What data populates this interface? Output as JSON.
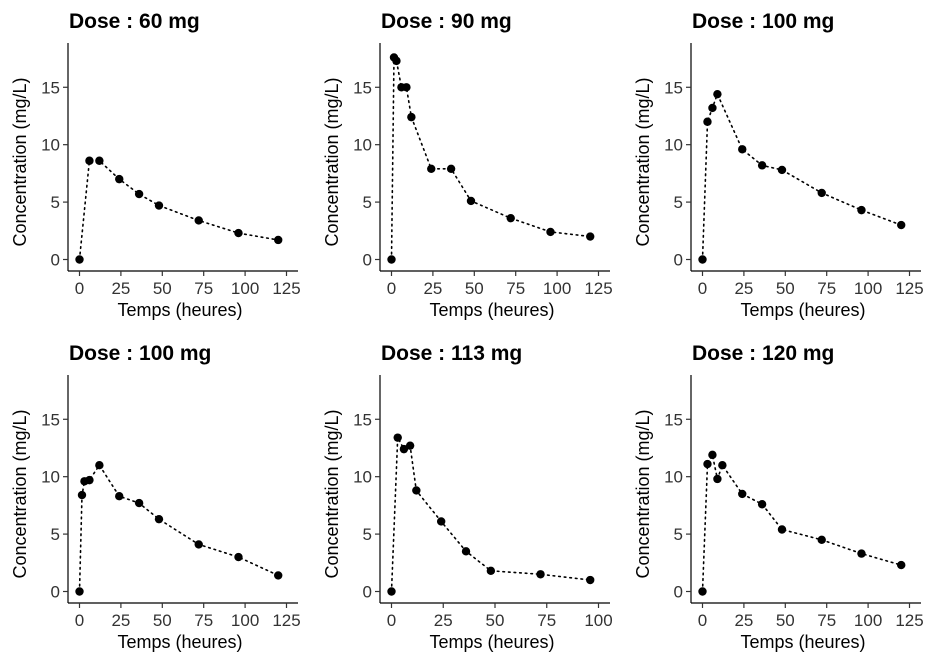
{
  "chart_data": [
    {
      "type": "line",
      "title": "Dose : 60 mg",
      "xlabel": "Temps (heures)",
      "ylabel": "Concentration (mg/L)",
      "xlim": [
        0,
        125
      ],
      "ylim": [
        0,
        18
      ],
      "xticks": [
        0,
        25,
        50,
        75,
        100,
        125
      ],
      "xtick_labels": [
        "0",
        "25",
        "50",
        "75",
        "100",
        "125"
      ],
      "yticks": [
        0,
        5,
        10,
        15
      ],
      "ytick_labels": [
        "0",
        "5",
        "10",
        "15"
      ],
      "x": [
        0,
        6,
        12,
        24,
        36,
        48,
        72,
        96,
        120
      ],
      "y": [
        0,
        8.6,
        8.6,
        7.0,
        5.7,
        4.7,
        3.4,
        2.3,
        1.7
      ]
    },
    {
      "type": "line",
      "title": "Dose : 90 mg",
      "xlabel": "Temps (heures)",
      "ylabel": "Concentration (mg/L)",
      "xlim": [
        0,
        125
      ],
      "ylim": [
        0,
        18
      ],
      "xticks": [
        0,
        25,
        50,
        75,
        100,
        125
      ],
      "xtick_labels": [
        "0",
        "25",
        "50",
        "75",
        "100",
        "125"
      ],
      "yticks": [
        0,
        5,
        10,
        15
      ],
      "ytick_labels": [
        "0",
        "5",
        "10",
        "15"
      ],
      "x": [
        0,
        1.5,
        3,
        6,
        9,
        12,
        24,
        36,
        48,
        72,
        96,
        120
      ],
      "y": [
        0,
        17.6,
        17.3,
        15.0,
        15.0,
        12.4,
        7.9,
        7.9,
        5.1,
        3.6,
        2.4,
        2.0
      ]
    },
    {
      "type": "line",
      "title": "Dose : 100 mg",
      "xlabel": "Temps (heures)",
      "ylabel": "Concentration (mg/L)",
      "xlim": [
        0,
        125
      ],
      "ylim": [
        0,
        18
      ],
      "xticks": [
        0,
        25,
        50,
        75,
        100,
        125
      ],
      "xtick_labels": [
        "0",
        "25",
        "50",
        "75",
        "100",
        "125"
      ],
      "yticks": [
        0,
        5,
        10,
        15
      ],
      "ytick_labels": [
        "0",
        "5",
        "10",
        "15"
      ],
      "x": [
        0,
        3,
        6,
        9,
        24,
        36,
        48,
        72,
        96,
        120
      ],
      "y": [
        0,
        12.0,
        13.2,
        14.4,
        9.6,
        8.2,
        7.8,
        5.8,
        4.3,
        3.0
      ]
    },
    {
      "type": "line",
      "title": "Dose : 100 mg",
      "xlabel": "Temps (heures)",
      "ylabel": "Concentration (mg/L)",
      "xlim": [
        0,
        125
      ],
      "ylim": [
        0,
        18
      ],
      "xticks": [
        0,
        25,
        50,
        75,
        100,
        125
      ],
      "xtick_labels": [
        "0",
        "25",
        "50",
        "75",
        "100",
        "125"
      ],
      "yticks": [
        0,
        5,
        10,
        15
      ],
      "ytick_labels": [
        "0",
        "5",
        "10",
        "15"
      ],
      "x": [
        0,
        1.5,
        3,
        6,
        12,
        24,
        36,
        48,
        72,
        96,
        120
      ],
      "y": [
        0,
        8.4,
        9.6,
        9.7,
        11.0,
        8.3,
        7.7,
        6.3,
        4.1,
        3.0,
        1.4
      ]
    },
    {
      "type": "line",
      "title": "Dose : 113 mg",
      "xlabel": "Temps (heures)",
      "ylabel": "Concentration (mg/L)",
      "xlim": [
        0,
        100
      ],
      "ylim": [
        0,
        18
      ],
      "xticks": [
        0,
        25,
        50,
        75,
        100
      ],
      "xtick_labels": [
        "0",
        "25",
        "50",
        "75",
        "100"
      ],
      "yticks": [
        0,
        5,
        10,
        15
      ],
      "ytick_labels": [
        "0",
        "5",
        "10",
        "15"
      ],
      "x": [
        0,
        3,
        6,
        9,
        12,
        24,
        36,
        48,
        72,
        96
      ],
      "y": [
        0,
        13.4,
        12.4,
        12.7,
        8.8,
        6.1,
        3.5,
        1.8,
        1.5,
        1.0
      ]
    },
    {
      "type": "line",
      "title": "Dose : 120 mg",
      "xlabel": "Temps (heures)",
      "ylabel": "Concentration (mg/L)",
      "xlim": [
        0,
        125
      ],
      "ylim": [
        0,
        18
      ],
      "xticks": [
        0,
        25,
        50,
        75,
        100,
        125
      ],
      "xtick_labels": [
        "0",
        "25",
        "50",
        "75",
        "100",
        "125"
      ],
      "yticks": [
        0,
        5,
        10,
        15
      ],
      "ytick_labels": [
        "0",
        "5",
        "10",
        "15"
      ],
      "x": [
        0,
        3,
        6,
        9,
        12,
        24,
        36,
        48,
        72,
        96,
        120
      ],
      "y": [
        0,
        11.1,
        11.9,
        9.8,
        11.0,
        8.5,
        7.6,
        5.4,
        4.5,
        3.3,
        2.3
      ]
    }
  ]
}
